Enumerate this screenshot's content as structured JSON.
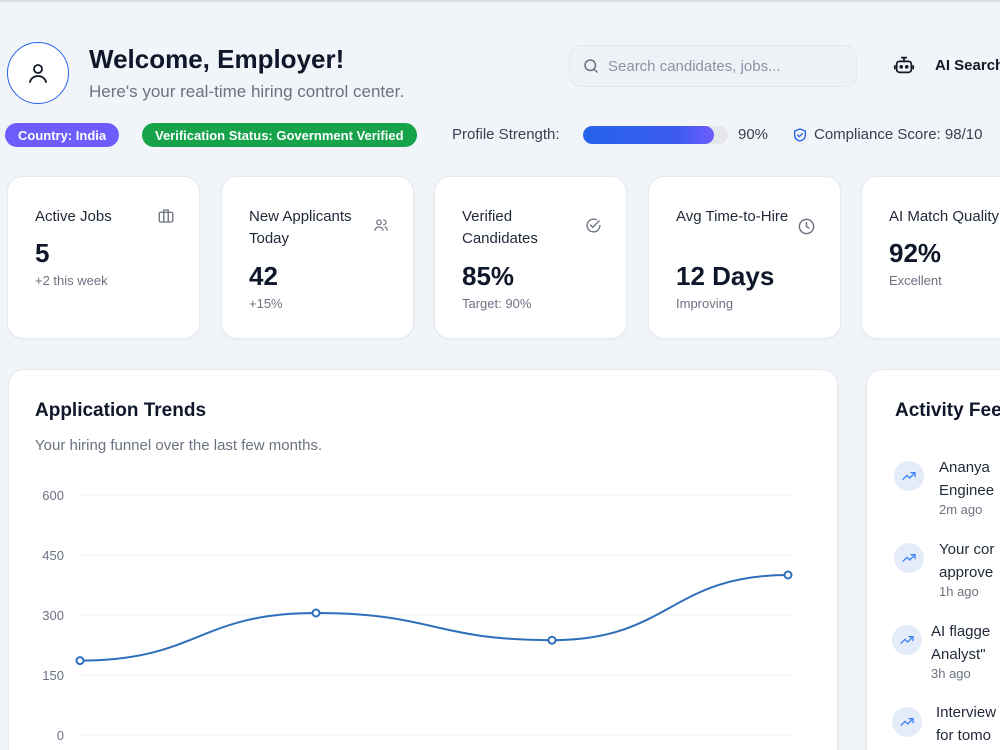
{
  "header": {
    "title": "Welcome, Employer!",
    "subtitle": "Here's your real-time hiring control center.",
    "search_placeholder": "Search candidates, jobs...",
    "ai_search_label": "AI Search"
  },
  "badges": {
    "country": "Country: India",
    "verification": "Verification Status: Government Verified"
  },
  "profile_strength": {
    "label": "Profile Strength:",
    "value": 0.9,
    "display": "90%"
  },
  "compliance": {
    "label": "Compliance Score: 98/10"
  },
  "stats": [
    {
      "title": "Active Jobs",
      "value": "5",
      "note": "+2 this week",
      "icon": "briefcase-icon"
    },
    {
      "title": "New Applicants Today",
      "value": "42",
      "note": "+15%",
      "icon": "users-icon"
    },
    {
      "title": "Verified Candidates",
      "value": "85%",
      "note": "Target: 90%",
      "icon": "check-circle-icon"
    },
    {
      "title": "Avg Time-to-Hire",
      "value": "12 Days",
      "note": "Improving",
      "icon": "clock-icon"
    },
    {
      "title": "AI Match Quality",
      "value": "92%",
      "note": "Excellent",
      "icon": ""
    }
  ],
  "chart_card": {
    "title": "Application Trends",
    "subtitle": "Your hiring funnel over the last few months."
  },
  "chart_data": {
    "type": "line",
    "y_ticks": [
      "600",
      "450",
      "300",
      "150",
      "0"
    ],
    "ylim": [
      0,
      600
    ],
    "values": [
      186,
      305,
      237,
      400
    ],
    "grid": true,
    "color": "#2f6fba"
  },
  "activity": {
    "title": "Activity Feed",
    "items": [
      {
        "lines": [
          "Ananya",
          "Enginee"
        ],
        "time": "2m ago"
      },
      {
        "lines": [
          "Your cor",
          "approve"
        ],
        "time": "1h ago"
      },
      {
        "lines": [
          "AI flagge",
          "Analyst\""
        ],
        "time": "3h ago"
      },
      {
        "lines": [
          "Interview",
          "for tomo"
        ],
        "time": ""
      }
    ]
  },
  "colors": {
    "accent": "#2563eb",
    "purple": "#6d5dfc",
    "green": "#16a34a",
    "background": "#f1f4f9"
  }
}
